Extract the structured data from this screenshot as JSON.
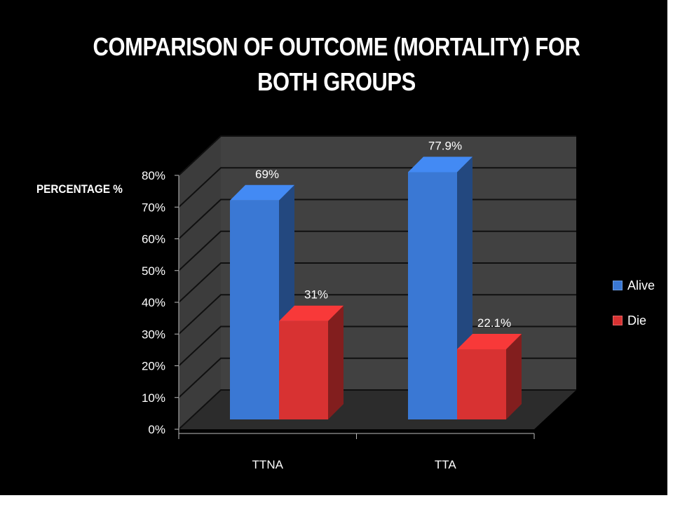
{
  "title_lines": [
    "COMPARISON OF OUTCOME (MORTALITY) FOR",
    "BOTH GROUPS"
  ],
  "chart_data": {
    "type": "bar",
    "title": "COMPARISON OF OUTCOME (MORTALITY) FOR BOTH GROUPS",
    "ylabel": "PERCENTAGE %",
    "xlabel": "",
    "categories": [
      "TTNA",
      "TTA"
    ],
    "series": [
      {
        "name": "Alive",
        "values": [
          69,
          77.9
        ],
        "labels": [
          "69%",
          "77.9%"
        ],
        "color": "#3a78d4"
      },
      {
        "name": "Die",
        "values": [
          31,
          22.1
        ],
        "labels": [
          "31%",
          "22.1%"
        ],
        "color": "#d83232"
      }
    ],
    "ylim": [
      0,
      80
    ],
    "yticks": [
      0,
      10,
      20,
      30,
      40,
      50,
      60,
      70,
      80
    ],
    "ytick_labels": [
      "0%",
      "10%",
      "20%",
      "30%",
      "40%",
      "50%",
      "60%",
      "70%",
      "80%"
    ],
    "grid": true,
    "legend": "right",
    "style": "3d-clustered-column"
  }
}
